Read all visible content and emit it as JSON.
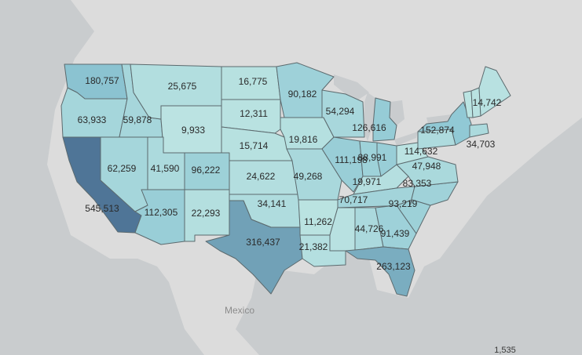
{
  "map": {
    "place_labels": {
      "mexico": "Mexico"
    },
    "color_scale": {
      "low": "#c9ece6",
      "mid": "#8fc8d4",
      "high": "#4f7597"
    },
    "states": [
      {
        "id": "WA",
        "value": "180,757",
        "num": 180757
      },
      {
        "id": "OR",
        "value": "63,933",
        "num": 63933
      },
      {
        "id": "CA",
        "value": "545,513",
        "num": 545513
      },
      {
        "id": "ID",
        "value": "59,878",
        "num": 59878
      },
      {
        "id": "NV",
        "value": "62,259",
        "num": 62259
      },
      {
        "id": "MT",
        "value": "25,675",
        "num": 25675
      },
      {
        "id": "WY",
        "value": "9,933",
        "num": 9933
      },
      {
        "id": "UT",
        "value": "41,590",
        "num": 41590
      },
      {
        "id": "AZ",
        "value": "112,305",
        "num": 112305
      },
      {
        "id": "CO",
        "value": "96,222",
        "num": 96222
      },
      {
        "id": "NM",
        "value": "22,293",
        "num": 22293
      },
      {
        "id": "ND",
        "value": "16,775",
        "num": 16775
      },
      {
        "id": "SD",
        "value": "12,311",
        "num": 12311
      },
      {
        "id": "NE",
        "value": "15,714",
        "num": 15714
      },
      {
        "id": "KS",
        "value": "24,622",
        "num": 24622
      },
      {
        "id": "OK",
        "value": "34,141",
        "num": 34141
      },
      {
        "id": "TX",
        "value": "316,437",
        "num": 316437
      },
      {
        "id": "MN",
        "value": "90,182",
        "num": 90182
      },
      {
        "id": "IA",
        "value": "19,816",
        "num": 19816
      },
      {
        "id": "MO",
        "value": "49,268",
        "num": 49268
      },
      {
        "id": "AR",
        "value": "11,262",
        "num": 11262
      },
      {
        "id": "LA",
        "value": "21,382",
        "num": 21382
      },
      {
        "id": "WI",
        "value": "54,294",
        "num": 54294
      },
      {
        "id": "IL",
        "value": "111,198",
        "num": 111198
      },
      {
        "id": "MI",
        "value": "126,616",
        "num": 126616
      },
      {
        "id": "IN",
        "value": "88,991",
        "num": 88991
      },
      {
        "id": "KY",
        "value": "19,971",
        "num": 19971
      },
      {
        "id": "TN",
        "value": "70,717",
        "num": 70717
      },
      {
        "id": "MS",
        "value": "",
        "num": 15000
      },
      {
        "id": "AL",
        "value": "44,726",
        "num": 44726
      },
      {
        "id": "GA",
        "value": "91,439",
        "num": 91439
      },
      {
        "id": "FL",
        "value": "263,123",
        "num": 263123
      },
      {
        "id": "SC",
        "value": "93,219",
        "num": 93219
      },
      {
        "id": "NC",
        "value": "83,353",
        "num": 83353
      },
      {
        "id": "VA",
        "value": "47,948",
        "num": 47948
      },
      {
        "id": "WV",
        "value": "",
        "num": 10000
      },
      {
        "id": "OH",
        "value": "114,632",
        "num": 114632
      },
      {
        "id": "PA",
        "value": "34,703",
        "num": 34703
      },
      {
        "id": "NY",
        "value": "152,874",
        "num": 152874
      },
      {
        "id": "VT",
        "value": "",
        "num": 9000
      },
      {
        "id": "NH",
        "value": "",
        "num": 12000
      },
      {
        "id": "MA",
        "value": "",
        "num": 40000
      },
      {
        "id": "ME",
        "value": "14,742",
        "num": 14742
      }
    ],
    "corner_value": "1,535"
  }
}
